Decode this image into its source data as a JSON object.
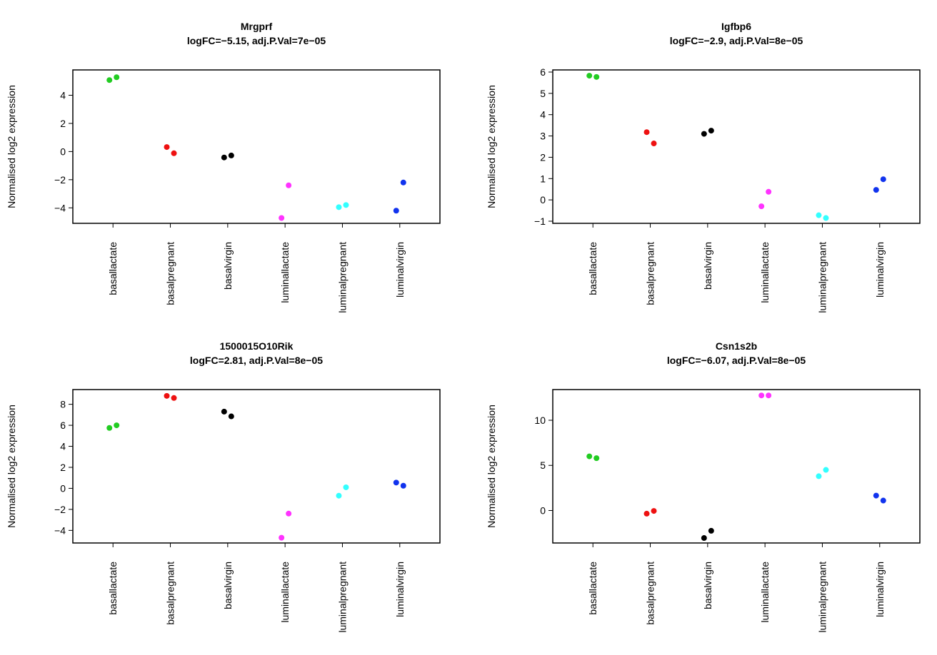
{
  "group_colors": {
    "basallactate": "#22cc22",
    "basalpregnant": "#ee1111",
    "basalvirgin": "#000000",
    "luminallactate": "#ff33ff",
    "luminalpregnant": "#33ffff",
    "luminalvirgin": "#1133ee"
  },
  "chart_data": [
    {
      "type": "scatter",
      "title": "Mrgprf",
      "subtitle": "logFC=−5.15, adj.P.Val=7e−05",
      "ylabel": "Normalised log2 expression",
      "categories": [
        "basallactate",
        "basalpregnant",
        "basalvirgin",
        "luminallactate",
        "luminalpregnant",
        "luminalvirgin"
      ],
      "yticks": [
        -4,
        -2,
        0,
        2,
        4
      ],
      "ytick_labels": [
        "−4",
        "−2",
        "0",
        "2",
        "4"
      ],
      "ylim": [
        -5.1,
        5.8
      ],
      "points": [
        {
          "group": "basallactate",
          "y": [
            5.08,
            5.28
          ]
        },
        {
          "group": "basalpregnant",
          "y": [
            0.32,
            -0.12
          ]
        },
        {
          "group": "basalvirgin",
          "y": [
            -0.42,
            -0.28
          ]
        },
        {
          "group": "luminallactate",
          "y": [
            -4.72,
            -2.4
          ]
        },
        {
          "group": "luminalpregnant",
          "y": [
            -3.95,
            -3.8
          ]
        },
        {
          "group": "luminalvirgin",
          "y": [
            -4.2,
            -2.2
          ]
        }
      ],
      "grid": false,
      "legend": "none"
    },
    {
      "type": "scatter",
      "title": "Igfbp6",
      "subtitle": "logFC=−2.9, adj.P.Val=8e−05",
      "ylabel": "Normalised log2 expression",
      "categories": [
        "basallactate",
        "basalpregnant",
        "basalvirgin",
        "luminallactate",
        "luminalpregnant",
        "luminalvirgin"
      ],
      "yticks": [
        -1,
        0,
        1,
        2,
        3,
        4,
        5,
        6
      ],
      "ytick_labels": [
        "−1",
        "0",
        "1",
        "2",
        "3",
        "4",
        "5",
        "6"
      ],
      "ylim": [
        -1.1,
        6.1
      ],
      "points": [
        {
          "group": "basallactate",
          "y": [
            5.83,
            5.77
          ]
        },
        {
          "group": "basalpregnant",
          "y": [
            3.18,
            2.65
          ]
        },
        {
          "group": "basalvirgin",
          "y": [
            3.1,
            3.25
          ]
        },
        {
          "group": "luminallactate",
          "y": [
            -0.3,
            0.38
          ]
        },
        {
          "group": "luminalpregnant",
          "y": [
            -0.72,
            -0.85
          ]
        },
        {
          "group": "luminalvirgin",
          "y": [
            0.47,
            0.97
          ]
        }
      ],
      "grid": false,
      "legend": "none"
    },
    {
      "type": "scatter",
      "title": "1500015O10Rik",
      "subtitle": "logFC=2.81, adj.P.Val=8e−05",
      "ylabel": "Normalised log2 expression",
      "categories": [
        "basallactate",
        "basalpregnant",
        "basalvirgin",
        "luminallactate",
        "luminalpregnant",
        "luminalvirgin"
      ],
      "yticks": [
        -4,
        -2,
        0,
        2,
        4,
        6,
        8
      ],
      "ytick_labels": [
        "−4",
        "−2",
        "0",
        "2",
        "4",
        "6",
        "8"
      ],
      "ylim": [
        -5.2,
        9.4
      ],
      "points": [
        {
          "group": "basallactate",
          "y": [
            5.75,
            6.0
          ]
        },
        {
          "group": "basalpregnant",
          "y": [
            8.8,
            8.6
          ]
        },
        {
          "group": "basalvirgin",
          "y": [
            7.3,
            6.85
          ]
        },
        {
          "group": "luminallactate",
          "y": [
            -4.7,
            -2.4
          ]
        },
        {
          "group": "luminalpregnant",
          "y": [
            -0.7,
            0.1
          ]
        },
        {
          "group": "luminalvirgin",
          "y": [
            0.55,
            0.25
          ]
        }
      ],
      "grid": false,
      "legend": "none"
    },
    {
      "type": "scatter",
      "title": "Csn1s2b",
      "subtitle": "logFC=−6.07, adj.P.Val=8e−05",
      "ylabel": "Normalised log2 expression",
      "categories": [
        "basallactate",
        "basalpregnant",
        "basalvirgin",
        "luminallactate",
        "luminalpregnant",
        "luminalvirgin"
      ],
      "yticks": [
        0,
        5,
        10
      ],
      "ytick_labels": [
        "0",
        "5",
        "10"
      ],
      "ylim": [
        -3.6,
        13.4
      ],
      "points": [
        {
          "group": "basallactate",
          "y": [
            6.0,
            5.8
          ]
        },
        {
          "group": "basalpregnant",
          "y": [
            -0.35,
            -0.05
          ]
        },
        {
          "group": "basalvirgin",
          "y": [
            -3.05,
            -2.25
          ]
        },
        {
          "group": "luminallactate",
          "y": [
            12.75,
            12.75
          ]
        },
        {
          "group": "luminalpregnant",
          "y": [
            3.8,
            4.5
          ]
        },
        {
          "group": "luminalvirgin",
          "y": [
            1.65,
            1.1
          ]
        }
      ],
      "grid": false,
      "legend": "none"
    }
  ]
}
